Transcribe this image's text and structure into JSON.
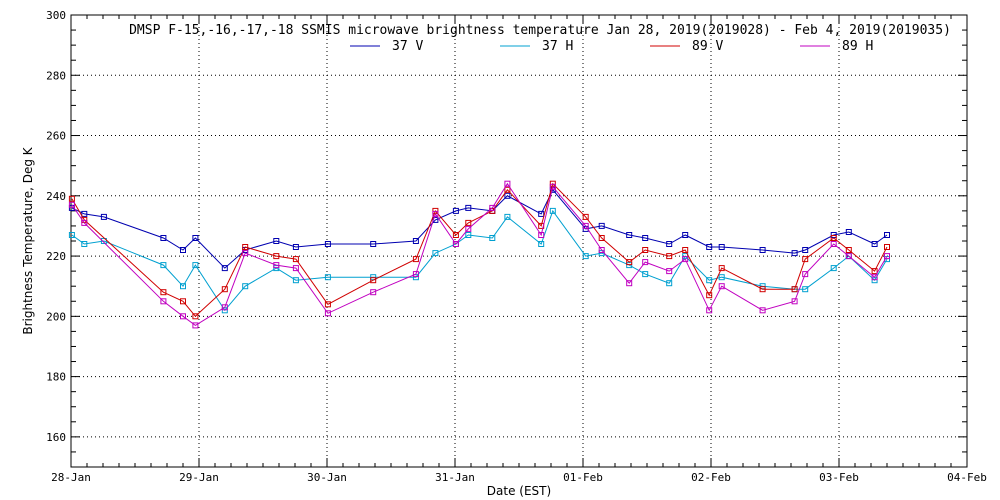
{
  "chart_data": {
    "type": "line",
    "title": "DMSP F-15,-16,-17,-18 SSMIS microwave brightness temperature Jan 28, 2019(2019028) - Feb  4, 2019(2019035)",
    "xlabel": "Date (EST)",
    "ylabel": "Brightness Temperature, Deg K",
    "xlim": [
      "2019-01-28T00:00",
      "2019-02-04T00:00"
    ],
    "ylim": [
      150,
      300
    ],
    "y_ticks": [
      160,
      180,
      200,
      220,
      240,
      260,
      280,
      300
    ],
    "x_ticks": [
      "28-Jan",
      "29-Jan",
      "30-Jan",
      "31-Jan",
      "01-Feb",
      "02-Feb",
      "03-Feb",
      "04-Feb"
    ],
    "grid": true,
    "legend_position": "top-center",
    "series": [
      {
        "name": "37 V",
        "color": "#0000b0",
        "points": [
          [
            "2019-01-28T00:10",
            236
          ],
          [
            "2019-01-28T02:30",
            234
          ],
          [
            "2019-01-28T06:10",
            233
          ],
          [
            "2019-01-28T17:20",
            226
          ],
          [
            "2019-01-28T21:00",
            222
          ],
          [
            "2019-01-28T23:20",
            226
          ],
          [
            "2019-01-29T04:50",
            216
          ],
          [
            "2019-01-29T08:40",
            222
          ],
          [
            "2019-01-29T14:30",
            225
          ],
          [
            "2019-01-29T18:10",
            223
          ],
          [
            "2019-01-30T00:10",
            224
          ],
          [
            "2019-01-30T08:40",
            224
          ],
          [
            "2019-01-30T16:40",
            225
          ],
          [
            "2019-01-30T20:20",
            232
          ],
          [
            "2019-01-31T00:10",
            235
          ],
          [
            "2019-01-31T02:30",
            236
          ],
          [
            "2019-01-31T07:00",
            235
          ],
          [
            "2019-01-31T09:50",
            240
          ],
          [
            "2019-01-31T16:10",
            234
          ],
          [
            "2019-01-31T18:20",
            242
          ],
          [
            "2019-02-01T00:30",
            229
          ],
          [
            "2019-02-01T03:30",
            230
          ],
          [
            "2019-02-01T08:40",
            227
          ],
          [
            "2019-02-01T11:40",
            226
          ],
          [
            "2019-02-01T16:10",
            224
          ],
          [
            "2019-02-01T19:10",
            227
          ],
          [
            "2019-02-01T23:40",
            223
          ],
          [
            "2019-02-02T02:00",
            223
          ],
          [
            "2019-02-02T09:40",
            222
          ],
          [
            "2019-02-02T15:40",
            221
          ],
          [
            "2019-02-02T17:40",
            222
          ],
          [
            "2019-02-02T23:00",
            227
          ],
          [
            "2019-02-03T01:50",
            228
          ],
          [
            "2019-02-03T06:40",
            224
          ],
          [
            "2019-02-03T09:00",
            227
          ]
        ]
      },
      {
        "name": "37 H",
        "color": "#00a0d0",
        "points": [
          [
            "2019-01-28T00:10",
            227
          ],
          [
            "2019-01-28T02:30",
            224
          ],
          [
            "2019-01-28T06:10",
            225
          ],
          [
            "2019-01-28T17:20",
            217
          ],
          [
            "2019-01-28T21:00",
            210
          ],
          [
            "2019-01-28T23:20",
            217
          ],
          [
            "2019-01-29T04:50",
            202
          ],
          [
            "2019-01-29T08:40",
            210
          ],
          [
            "2019-01-29T14:30",
            216
          ],
          [
            "2019-01-29T18:10",
            212
          ],
          [
            "2019-01-30T00:10",
            213
          ],
          [
            "2019-01-30T08:40",
            213
          ],
          [
            "2019-01-30T16:40",
            213
          ],
          [
            "2019-01-30T20:20",
            221
          ],
          [
            "2019-01-31T00:10",
            224
          ],
          [
            "2019-01-31T02:30",
            227
          ],
          [
            "2019-01-31T07:00",
            226
          ],
          [
            "2019-01-31T09:50",
            233
          ],
          [
            "2019-01-31T16:10",
            224
          ],
          [
            "2019-01-31T18:20",
            235
          ],
          [
            "2019-02-01T00:30",
            220
          ],
          [
            "2019-02-01T03:30",
            221
          ],
          [
            "2019-02-01T08:40",
            217
          ],
          [
            "2019-02-01T11:40",
            214
          ],
          [
            "2019-02-01T16:10",
            211
          ],
          [
            "2019-02-01T19:10",
            220
          ],
          [
            "2019-02-01T23:40",
            212
          ],
          [
            "2019-02-02T02:00",
            213
          ],
          [
            "2019-02-02T09:40",
            210
          ],
          [
            "2019-02-02T15:40",
            209
          ],
          [
            "2019-02-02T17:40",
            209
          ],
          [
            "2019-02-02T23:00",
            216
          ],
          [
            "2019-02-03T01:50",
            220
          ],
          [
            "2019-02-03T06:40",
            212
          ],
          [
            "2019-02-03T09:00",
            219
          ]
        ]
      },
      {
        "name": "89 V",
        "color": "#d00000",
        "points": [
          [
            "2019-01-28T00:10",
            239
          ],
          [
            "2019-01-28T02:30",
            232
          ],
          [
            "2019-01-28T17:20",
            208
          ],
          [
            "2019-01-28T21:00",
            205
          ],
          [
            "2019-01-28T23:20",
            200
          ],
          [
            "2019-01-29T04:50",
            209
          ],
          [
            "2019-01-29T08:40",
            223
          ],
          [
            "2019-01-29T14:30",
            220
          ],
          [
            "2019-01-29T18:10",
            219
          ],
          [
            "2019-01-30T00:10",
            204
          ],
          [
            "2019-01-30T08:40",
            212
          ],
          [
            "2019-01-30T16:40",
            219
          ],
          [
            "2019-01-30T20:20",
            235
          ],
          [
            "2019-01-31T00:10",
            227
          ],
          [
            "2019-01-31T02:30",
            231
          ],
          [
            "2019-01-31T07:00",
            235
          ],
          [
            "2019-01-31T09:50",
            242
          ],
          [
            "2019-01-31T16:10",
            230
          ],
          [
            "2019-01-31T18:20",
            244
          ],
          [
            "2019-02-01T00:30",
            233
          ],
          [
            "2019-02-01T03:30",
            226
          ],
          [
            "2019-02-01T08:40",
            218
          ],
          [
            "2019-02-01T11:40",
            222
          ],
          [
            "2019-02-01T16:10",
            220
          ],
          [
            "2019-02-01T19:10",
            222
          ],
          [
            "2019-02-01T23:40",
            207
          ],
          [
            "2019-02-02T02:00",
            216
          ],
          [
            "2019-02-02T09:40",
            209
          ],
          [
            "2019-02-02T15:40",
            209
          ],
          [
            "2019-02-02T17:40",
            219
          ],
          [
            "2019-02-02T23:00",
            226
          ],
          [
            "2019-02-03T01:50",
            222
          ],
          [
            "2019-02-03T06:40",
            215
          ],
          [
            "2019-02-03T09:00",
            223
          ]
        ]
      },
      {
        "name": "89 H",
        "color": "#c000c0",
        "points": [
          [
            "2019-01-28T00:10",
            237
          ],
          [
            "2019-01-28T02:30",
            231
          ],
          [
            "2019-01-28T17:20",
            205
          ],
          [
            "2019-01-28T21:00",
            200
          ],
          [
            "2019-01-28T23:20",
            197
          ],
          [
            "2019-01-29T04:50",
            203
          ],
          [
            "2019-01-29T08:40",
            221
          ],
          [
            "2019-01-29T14:30",
            217
          ],
          [
            "2019-01-29T18:10",
            216
          ],
          [
            "2019-01-30T00:10",
            201
          ],
          [
            "2019-01-30T08:40",
            208
          ],
          [
            "2019-01-30T16:40",
            214
          ],
          [
            "2019-01-30T20:20",
            234
          ],
          [
            "2019-01-31T00:10",
            224
          ],
          [
            "2019-01-31T02:30",
            229
          ],
          [
            "2019-01-31T07:00",
            236
          ],
          [
            "2019-01-31T09:50",
            244
          ],
          [
            "2019-01-31T16:10",
            227
          ],
          [
            "2019-01-31T18:20",
            243
          ],
          [
            "2019-02-01T00:30",
            230
          ],
          [
            "2019-02-01T03:30",
            222
          ],
          [
            "2019-02-01T08:40",
            211
          ],
          [
            "2019-02-01T11:40",
            218
          ],
          [
            "2019-02-01T16:10",
            215
          ],
          [
            "2019-02-01T19:10",
            219
          ],
          [
            "2019-02-01T23:40",
            202
          ],
          [
            "2019-02-02T02:00",
            210
          ],
          [
            "2019-02-02T09:40",
            202
          ],
          [
            "2019-02-02T15:40",
            205
          ],
          [
            "2019-02-02T17:40",
            214
          ],
          [
            "2019-02-02T23:00",
            224
          ],
          [
            "2019-02-03T01:50",
            220
          ],
          [
            "2019-02-03T06:40",
            213
          ],
          [
            "2019-02-03T09:00",
            220
          ]
        ]
      }
    ]
  }
}
